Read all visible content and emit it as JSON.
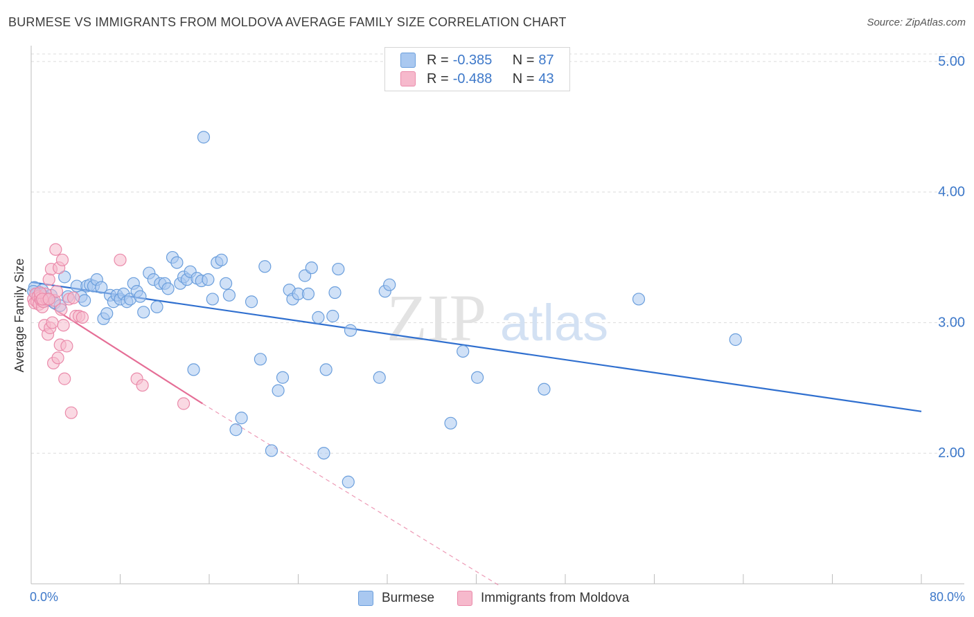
{
  "title": "BURMESE VS IMMIGRANTS FROM MOLDOVA AVERAGE FAMILY SIZE CORRELATION CHART",
  "source": "Source: ZipAtlas.com",
  "watermark_zip": "ZIP",
  "watermark_atlas": "atlas",
  "legend": {
    "r_label": "R =",
    "n_label": "N =",
    "rows": [
      {
        "name": "Burmese",
        "r": "-0.385",
        "n": "87"
      },
      {
        "name": "Immigrants from Moldova",
        "r": "-0.488",
        "n": "43"
      }
    ]
  },
  "colors": {
    "burmese_fill": "#a9c8f0",
    "burmese_stroke": "#6a9edc",
    "burmese_line": "#2f6fcf",
    "moldova_fill": "#f6b9cc",
    "moldova_stroke": "#ea8aaa",
    "moldova_line": "#e56e96",
    "tick_text": "#3d78c9",
    "grid": "#dcdcdc"
  },
  "chart_data": {
    "type": "scatter",
    "title": "BURMESE VS IMMIGRANTS FROM MOLDOVA AVERAGE FAMILY SIZE CORRELATION CHART",
    "xlabel": "",
    "ylabel": "Average Family Size",
    "xlim": [
      0,
      80
    ],
    "ylim": [
      1.0,
      5.1
    ],
    "x_tick_labels": [
      "0.0%",
      "80.0%"
    ],
    "y_ticks": [
      2.0,
      3.0,
      4.0,
      5.0
    ],
    "y_tick_labels": [
      "2.00",
      "3.00",
      "4.00",
      "5.00"
    ],
    "grid": "horizontal dashed",
    "series": [
      {
        "name": "Burmese",
        "r": -0.385,
        "n": 87,
        "trend": {
          "x": [
            0,
            80
          ],
          "y": [
            3.31,
            2.32
          ],
          "style": "solid"
        },
        "points": [
          [
            0.3,
            3.27
          ],
          [
            0.5,
            3.22
          ],
          [
            0.7,
            3.19
          ],
          [
            1.0,
            3.25
          ],
          [
            1.2,
            3.2
          ],
          [
            1.4,
            3.17
          ],
          [
            1.8,
            3.21
          ],
          [
            2.1,
            3.15
          ],
          [
            2.6,
            3.13
          ],
          [
            3.0,
            3.35
          ],
          [
            3.3,
            3.2
          ],
          [
            4.1,
            3.28
          ],
          [
            4.5,
            3.2
          ],
          [
            4.8,
            3.17
          ],
          [
            5.0,
            3.28
          ],
          [
            5.3,
            3.29
          ],
          [
            5.6,
            3.28
          ],
          [
            5.9,
            3.33
          ],
          [
            6.3,
            3.27
          ],
          [
            6.5,
            3.03
          ],
          [
            6.8,
            3.07
          ],
          [
            7.1,
            3.21
          ],
          [
            7.4,
            3.16
          ],
          [
            7.7,
            3.21
          ],
          [
            8.0,
            3.18
          ],
          [
            8.3,
            3.22
          ],
          [
            8.6,
            3.16
          ],
          [
            8.9,
            3.18
          ],
          [
            9.2,
            3.3
          ],
          [
            9.5,
            3.24
          ],
          [
            9.8,
            3.2
          ],
          [
            10.1,
            3.08
          ],
          [
            10.6,
            3.38
          ],
          [
            11.0,
            3.33
          ],
          [
            11.3,
            3.12
          ],
          [
            11.6,
            3.3
          ],
          [
            12.0,
            3.3
          ],
          [
            12.3,
            3.26
          ],
          [
            12.7,
            3.5
          ],
          [
            13.1,
            3.46
          ],
          [
            13.4,
            3.3
          ],
          [
            13.7,
            3.35
          ],
          [
            14.0,
            3.33
          ],
          [
            14.3,
            3.39
          ],
          [
            14.6,
            2.64
          ],
          [
            14.9,
            3.34
          ],
          [
            15.3,
            3.32
          ],
          [
            15.5,
            4.42
          ],
          [
            15.9,
            3.33
          ],
          [
            16.3,
            3.18
          ],
          [
            16.7,
            3.46
          ],
          [
            17.1,
            3.48
          ],
          [
            17.5,
            3.3
          ],
          [
            17.8,
            3.21
          ],
          [
            18.4,
            2.18
          ],
          [
            18.9,
            2.27
          ],
          [
            19.8,
            3.16
          ],
          [
            20.6,
            2.72
          ],
          [
            21.0,
            3.43
          ],
          [
            21.6,
            2.02
          ],
          [
            22.2,
            2.48
          ],
          [
            22.6,
            2.58
          ],
          [
            23.2,
            3.25
          ],
          [
            23.5,
            3.18
          ],
          [
            24.0,
            3.22
          ],
          [
            24.6,
            3.36
          ],
          [
            24.9,
            3.22
          ],
          [
            25.2,
            3.42
          ],
          [
            25.8,
            3.04
          ],
          [
            26.3,
            2.0
          ],
          [
            26.5,
            2.64
          ],
          [
            27.1,
            3.05
          ],
          [
            27.3,
            3.23
          ],
          [
            27.6,
            3.41
          ],
          [
            28.5,
            1.78
          ],
          [
            28.7,
            2.94
          ],
          [
            31.3,
            2.58
          ],
          [
            31.8,
            3.24
          ],
          [
            32.2,
            3.29
          ],
          [
            37.7,
            2.23
          ],
          [
            38.8,
            2.78
          ],
          [
            40.1,
            2.58
          ],
          [
            46.1,
            2.49
          ],
          [
            54.6,
            3.18
          ],
          [
            63.3,
            2.87
          ],
          [
            0.2,
            3.24
          ],
          [
            0.9,
            3.22
          ]
        ]
      },
      {
        "name": "Immigrants from Moldova",
        "r": -0.488,
        "n": 43,
        "trend": {
          "x": [
            0.3,
            15.4
          ],
          "y": [
            3.2,
            2.38
          ],
          "style": "solid"
        },
        "trend_ext": {
          "x": [
            15.4,
            42.0
          ],
          "y": [
            2.38,
            0.99
          ],
          "style": "dashed"
        },
        "points": [
          [
            0.2,
            3.18
          ],
          [
            0.3,
            3.15
          ],
          [
            0.4,
            3.22
          ],
          [
            0.5,
            3.16
          ],
          [
            0.6,
            3.2
          ],
          [
            0.7,
            3.14
          ],
          [
            0.8,
            3.19
          ],
          [
            0.9,
            3.17
          ],
          [
            1.0,
            3.12
          ],
          [
            1.1,
            3.16
          ],
          [
            1.2,
            2.98
          ],
          [
            1.3,
            3.22
          ],
          [
            1.4,
            3.18
          ],
          [
            1.5,
            2.91
          ],
          [
            1.6,
            3.33
          ],
          [
            1.7,
            2.96
          ],
          [
            1.8,
            3.41
          ],
          [
            1.9,
            3.0
          ],
          [
            2.0,
            2.69
          ],
          [
            2.1,
            3.17
          ],
          [
            2.2,
            3.56
          ],
          [
            2.3,
            3.24
          ],
          [
            2.4,
            2.73
          ],
          [
            2.5,
            3.42
          ],
          [
            2.6,
            2.83
          ],
          [
            2.7,
            3.1
          ],
          [
            2.8,
            3.48
          ],
          [
            2.9,
            2.98
          ],
          [
            3.0,
            2.57
          ],
          [
            3.2,
            2.82
          ],
          [
            3.4,
            3.18
          ],
          [
            3.6,
            2.31
          ],
          [
            3.8,
            3.19
          ],
          [
            4.0,
            3.05
          ],
          [
            4.3,
            3.05
          ],
          [
            4.6,
            3.04
          ],
          [
            0.8,
            3.23
          ],
          [
            1.0,
            3.18
          ],
          [
            1.6,
            3.18
          ],
          [
            8.0,
            3.48
          ],
          [
            9.5,
            2.57
          ],
          [
            10.0,
            2.52
          ],
          [
            13.7,
            2.38
          ]
        ]
      }
    ]
  }
}
